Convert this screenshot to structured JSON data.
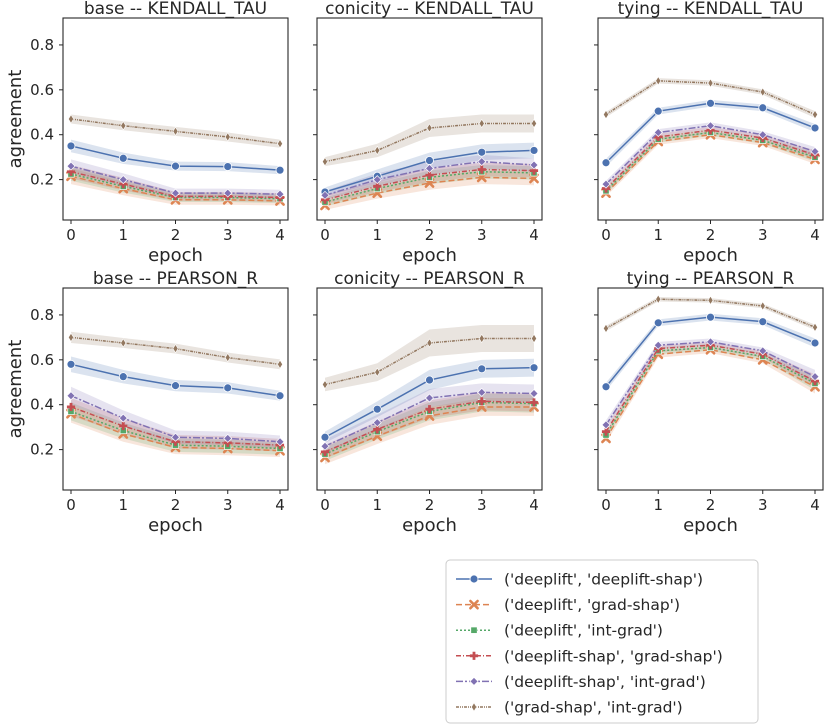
{
  "chart_data": {
    "type": "line",
    "shared_ylabel": "agreement",
    "shared_xlabel": "epoch",
    "x": [
      0,
      1,
      2,
      3,
      4
    ],
    "ylim": [
      0.02,
      0.92
    ],
    "yticks": [
      0.2,
      0.4,
      0.6,
      0.8
    ],
    "legend_location": "bottom-right",
    "series_meta": [
      {
        "key": "dl_dls",
        "name": "('deeplift', 'deeplift-shap')",
        "color": "#4c72b0",
        "marker": "circle",
        "dash": ""
      },
      {
        "key": "dl_gs",
        "name": "('deeplift', 'grad-shap')",
        "color": "#dd8452",
        "marker": "x",
        "dash": "6,3"
      },
      {
        "key": "dl_ig",
        "name": "('deeplift', 'int-grad')",
        "color": "#55a868",
        "marker": "square",
        "dash": "2,2"
      },
      {
        "key": "dls_gs",
        "name": "('deeplift-shap', 'grad-shap')",
        "color": "#c44e52",
        "marker": "plus",
        "dash": "5,2,1,2"
      },
      {
        "key": "dls_ig",
        "name": "('deeplift-shap', 'int-grad')",
        "color": "#8172b3",
        "marker": "diamond",
        "dash": "7,2,2,2"
      },
      {
        "key": "gs_ig",
        "name": "('grad-shap', 'int-grad')",
        "color": "#937860",
        "marker": "thin-diamond",
        "dash": "3,1,1,1,1,1"
      }
    ],
    "panels": [
      {
        "title": "base -- KENDALL_TAU",
        "series": [
          {
            "key": "dl_dls",
            "values": [
              0.35,
              0.295,
              0.26,
              0.258,
              0.242
            ],
            "band": [
              0.028,
              0.025,
              0.02,
              0.02,
              0.018
            ]
          },
          {
            "key": "dl_gs",
            "values": [
              0.215,
              0.16,
              0.11,
              0.11,
              0.105
            ],
            "band": [
              0.035,
              0.03,
              0.022,
              0.022,
              0.02
            ]
          },
          {
            "key": "dl_ig",
            "values": [
              0.225,
              0.17,
              0.12,
              0.12,
              0.115
            ],
            "band": [
              0.03,
              0.028,
              0.02,
              0.02,
              0.02
            ]
          },
          {
            "key": "dls_gs",
            "values": [
              0.235,
              0.18,
              0.125,
              0.125,
              0.12
            ],
            "band": [
              0.03,
              0.028,
              0.02,
              0.02,
              0.02
            ]
          },
          {
            "key": "dls_ig",
            "values": [
              0.26,
              0.2,
              0.14,
              0.14,
              0.135
            ],
            "band": [
              0.03,
              0.028,
              0.02,
              0.02,
              0.02
            ]
          },
          {
            "key": "gs_ig",
            "values": [
              0.47,
              0.44,
              0.415,
              0.39,
              0.36
            ],
            "band": [
              0.02,
              0.02,
              0.02,
              0.02,
              0.018
            ]
          }
        ]
      },
      {
        "title": "conicity -- KENDALL_TAU",
        "series": [
          {
            "key": "dl_dls",
            "values": [
              0.145,
              0.215,
              0.285,
              0.322,
              0.33
            ],
            "band": [
              0.02,
              0.03,
              0.035,
              0.035,
              0.035
            ]
          },
          {
            "key": "dl_gs",
            "values": [
              0.085,
              0.14,
              0.185,
              0.21,
              0.205
            ],
            "band": [
              0.02,
              0.025,
              0.03,
              0.03,
              0.03
            ]
          },
          {
            "key": "dl_ig",
            "values": [
              0.1,
              0.16,
              0.21,
              0.235,
              0.23
            ],
            "band": [
              0.02,
              0.025,
              0.03,
              0.03,
              0.03
            ]
          },
          {
            "key": "dls_gs",
            "values": [
              0.11,
              0.17,
              0.22,
              0.245,
              0.24
            ],
            "band": [
              0.02,
              0.025,
              0.03,
              0.03,
              0.03
            ]
          },
          {
            "key": "dls_ig",
            "values": [
              0.13,
              0.2,
              0.25,
              0.28,
              0.265
            ],
            "band": [
              0.02,
              0.028,
              0.03,
              0.03,
              0.03
            ]
          },
          {
            "key": "gs_ig",
            "values": [
              0.28,
              0.33,
              0.43,
              0.45,
              0.45
            ],
            "band": [
              0.02,
              0.03,
              0.04,
              0.04,
              0.04
            ]
          }
        ]
      },
      {
        "title": "tying -- KENDALL_TAU",
        "series": [
          {
            "key": "dl_dls",
            "values": [
              0.275,
              0.505,
              0.54,
              0.52,
              0.43
            ],
            "band": [
              0.018,
              0.015,
              0.015,
              0.015,
              0.018
            ]
          },
          {
            "key": "dl_gs",
            "values": [
              0.14,
              0.37,
              0.4,
              0.365,
              0.29
            ],
            "band": [
              0.015,
              0.015,
              0.015,
              0.015,
              0.02
            ]
          },
          {
            "key": "dl_ig",
            "values": [
              0.15,
              0.38,
              0.41,
              0.375,
              0.3
            ],
            "band": [
              0.015,
              0.015,
              0.015,
              0.015,
              0.02
            ]
          },
          {
            "key": "dls_gs",
            "values": [
              0.16,
              0.39,
              0.42,
              0.385,
              0.31
            ],
            "band": [
              0.015,
              0.015,
              0.015,
              0.015,
              0.02
            ]
          },
          {
            "key": "dls_ig",
            "values": [
              0.18,
              0.41,
              0.44,
              0.4,
              0.325
            ],
            "band": [
              0.015,
              0.015,
              0.015,
              0.015,
              0.02
            ]
          },
          {
            "key": "gs_ig",
            "values": [
              0.49,
              0.64,
              0.63,
              0.59,
              0.49
            ],
            "band": [
              0.012,
              0.012,
              0.012,
              0.012,
              0.015
            ]
          }
        ]
      },
      {
        "title": "base -- PEARSON_R",
        "series": [
          {
            "key": "dl_dls",
            "values": [
              0.58,
              0.525,
              0.485,
              0.475,
              0.44
            ],
            "band": [
              0.035,
              0.03,
              0.025,
              0.025,
              0.022
            ]
          },
          {
            "key": "dl_gs",
            "values": [
              0.36,
              0.27,
              0.21,
              0.205,
              0.195
            ],
            "band": [
              0.04,
              0.035,
              0.03,
              0.03,
              0.028
            ]
          },
          {
            "key": "dl_ig",
            "values": [
              0.37,
              0.285,
              0.22,
              0.215,
              0.205
            ],
            "band": [
              0.04,
              0.035,
              0.03,
              0.03,
              0.028
            ]
          },
          {
            "key": "dls_gs",
            "values": [
              0.39,
              0.305,
              0.235,
              0.23,
              0.22
            ],
            "band": [
              0.04,
              0.035,
              0.03,
              0.03,
              0.028
            ]
          },
          {
            "key": "dls_ig",
            "values": [
              0.44,
              0.34,
              0.255,
              0.25,
              0.235
            ],
            "band": [
              0.04,
              0.035,
              0.03,
              0.03,
              0.028
            ]
          },
          {
            "key": "gs_ig",
            "values": [
              0.7,
              0.675,
              0.65,
              0.61,
              0.58
            ],
            "band": [
              0.025,
              0.022,
              0.022,
              0.022,
              0.022
            ]
          }
        ]
      },
      {
        "title": "conicity -- PEARSON_R",
        "series": [
          {
            "key": "dl_dls",
            "values": [
              0.255,
              0.38,
              0.51,
              0.56,
              0.565
            ],
            "band": [
              0.025,
              0.035,
              0.045,
              0.04,
              0.04
            ]
          },
          {
            "key": "dl_gs",
            "values": [
              0.165,
              0.26,
              0.35,
              0.39,
              0.39
            ],
            "band": [
              0.03,
              0.035,
              0.04,
              0.04,
              0.04
            ]
          },
          {
            "key": "dl_ig",
            "values": [
              0.18,
              0.28,
              0.37,
              0.41,
              0.405
            ],
            "band": [
              0.03,
              0.035,
              0.04,
              0.04,
              0.04
            ]
          },
          {
            "key": "dls_gs",
            "values": [
              0.19,
              0.29,
              0.38,
              0.415,
              0.41
            ],
            "band": [
              0.03,
              0.035,
              0.04,
              0.04,
              0.04
            ]
          },
          {
            "key": "dls_ig",
            "values": [
              0.215,
              0.32,
              0.43,
              0.455,
              0.45
            ],
            "band": [
              0.03,
              0.035,
              0.04,
              0.04,
              0.04
            ]
          },
          {
            "key": "gs_ig",
            "values": [
              0.49,
              0.545,
              0.675,
              0.695,
              0.695
            ],
            "band": [
              0.03,
              0.04,
              0.06,
              0.06,
              0.06
            ]
          }
        ]
      },
      {
        "title": "tying -- PEARSON_R",
        "series": [
          {
            "key": "dl_dls",
            "values": [
              0.48,
              0.765,
              0.79,
              0.77,
              0.675
            ],
            "band": [
              0.018,
              0.015,
              0.015,
              0.015,
              0.02
            ]
          },
          {
            "key": "dl_gs",
            "values": [
              0.25,
              0.625,
              0.645,
              0.6,
              0.48
            ],
            "band": [
              0.02,
              0.015,
              0.015,
              0.015,
              0.03
            ]
          },
          {
            "key": "dl_ig",
            "values": [
              0.265,
              0.64,
              0.655,
              0.615,
              0.495
            ],
            "band": [
              0.02,
              0.015,
              0.015,
              0.015,
              0.03
            ]
          },
          {
            "key": "dls_gs",
            "values": [
              0.28,
              0.65,
              0.665,
              0.625,
              0.505
            ],
            "band": [
              0.02,
              0.015,
              0.015,
              0.015,
              0.03
            ]
          },
          {
            "key": "dls_ig",
            "values": [
              0.31,
              0.665,
              0.68,
              0.64,
              0.525
            ],
            "band": [
              0.02,
              0.015,
              0.015,
              0.015,
              0.03
            ]
          },
          {
            "key": "gs_ig",
            "values": [
              0.74,
              0.87,
              0.865,
              0.84,
              0.745
            ],
            "band": [
              0.012,
              0.01,
              0.01,
              0.01,
              0.012
            ]
          }
        ]
      }
    ]
  }
}
